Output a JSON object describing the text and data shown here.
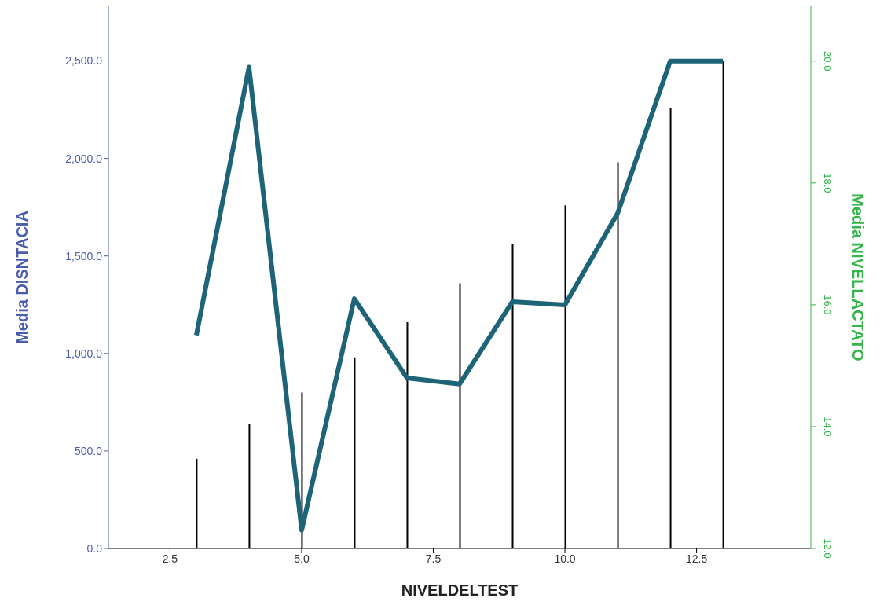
{
  "chart_data": {
    "type": "bar",
    "xlabel": "NIVELDELTEST",
    "ylabel": "Media DISNTACIA",
    "y2label": "Media NIVELLACTATO",
    "x": [
      3,
      4,
      5,
      6,
      7,
      8,
      9,
      10,
      11,
      12,
      13
    ],
    "series": [
      {
        "color": "#000000",
        "values": [
          460,
          640,
          800,
          980,
          1160,
          1360,
          1560,
          1760,
          1980,
          2260,
          2500
        ]
      },
      {
        "type": "line",
        "axis": "y2",
        "color": "#1e6478",
        "values": [
          15.5,
          19.9,
          12.3,
          16.1,
          14.8,
          14.7,
          16.05,
          16.0,
          17.5,
          20.0,
          20.0
        ]
      }
    ],
    "xlim": [
      1.33,
      14.67
    ],
    "xticks": [
      {
        "value": 2.5,
        "label": "2.5"
      },
      {
        "value": 5,
        "label": "5.0"
      },
      {
        "value": 7.5,
        "label": "7.5"
      },
      {
        "value": 10,
        "label": "10.0"
      },
      {
        "value": 12.5,
        "label": "12.5"
      }
    ],
    "ylim": [
      0,
      2780
    ],
    "yticks": [
      {
        "value": 0,
        "label": "0.0"
      },
      {
        "value": 500,
        "label": "500.0"
      },
      {
        "value": 1000,
        "label": "1,000.0"
      },
      {
        "value": 1500,
        "label": "1,500.0"
      },
      {
        "value": 2000,
        "label": "2,000.0"
      },
      {
        "value": 2500,
        "label": "2,500.0"
      }
    ],
    "y2lim": [
      12,
      20.9
    ],
    "y2ticks": [
      {
        "value": 12,
        "label": "12.0"
      },
      {
        "value": 14,
        "label": "14.0"
      },
      {
        "value": 16,
        "label": "16.0"
      },
      {
        "value": 18,
        "label": "18.0"
      },
      {
        "value": 20,
        "label": "20.0"
      }
    ],
    "grid": false,
    "legend": false,
    "marker": "none",
    "line_style": "solid"
  }
}
